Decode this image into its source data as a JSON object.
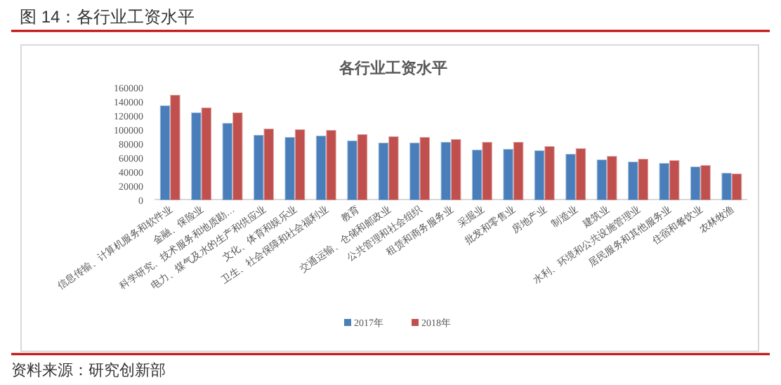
{
  "chart_data": {
    "type": "bar",
    "title": "各行业工资水平",
    "subtitle": "图 14：各行业工资水平",
    "categories": [
      "信息传输、计算机服务和软件业",
      "金融、保险业",
      "科学研究、技术服务和地质勘…",
      "电力、煤气及水的生产和供应业",
      "文化、体育和娱乐业",
      "卫生、社会保障和社会福利业",
      "教育",
      "交通运输、仓储和邮政业",
      "公共管理和社会组织",
      "租赁和商务服务业",
      "采掘业",
      "批发和零售业",
      "房地产业",
      "制造业",
      "建筑业",
      "水利、环境和公共设施管理业",
      "居民服务和其他服务业",
      "住宿和餐饮业",
      "农林牧渔"
    ],
    "series": [
      {
        "name": "2017年",
        "color": "#4a7ebb",
        "values": [
          133000,
          123000,
          108000,
          91000,
          88000,
          90000,
          83000,
          80000,
          80000,
          81000,
          70000,
          71000,
          69000,
          64000,
          56000,
          53000,
          51000,
          46000,
          37000
        ]
      },
      {
        "name": "2018年",
        "color": "#c0504d",
        "values": [
          148000,
          130000,
          123000,
          100000,
          99000,
          98000,
          92000,
          89000,
          88000,
          85000,
          81000,
          81000,
          75000,
          72000,
          61000,
          57000,
          55000,
          48000,
          36000
        ]
      }
    ],
    "ylim": [
      0,
      160000
    ],
    "yticks": [
      0,
      20000,
      40000,
      60000,
      80000,
      100000,
      120000,
      140000,
      160000
    ],
    "grid": false,
    "legend": "bottom",
    "annotations": [
      "资料来源：研究创新部"
    ]
  }
}
